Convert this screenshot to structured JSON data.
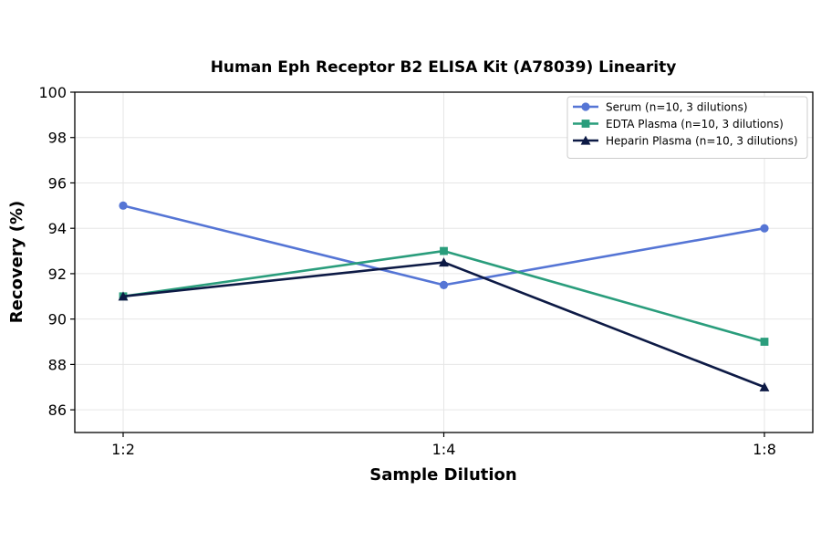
{
  "chart_data": {
    "type": "line",
    "title": "Human Eph Receptor B2 ELISA Kit (A78039) Linearity",
    "xlabel": "Sample Dilution",
    "ylabel": "Recovery (%)",
    "categories": [
      "1:2",
      "1:4",
      "1:8"
    ],
    "ylim": [
      85,
      100
    ],
    "yticks": [
      86,
      88,
      90,
      92,
      94,
      96,
      98,
      100
    ],
    "grid": true,
    "legend_position": "top-right",
    "series": [
      {
        "name": "Serum (n=10, 3 dilutions)",
        "values": [
          95,
          91.5,
          94
        ],
        "color": "#5575d5",
        "marker": "circle"
      },
      {
        "name": "EDTA Plasma (n=10, 3 dilutions)",
        "values": [
          91,
          93,
          89
        ],
        "color": "#2a9d7c",
        "marker": "square"
      },
      {
        "name": "Heparin Plasma (n=10, 3 dilutions)",
        "values": [
          91,
          92.5,
          87
        ],
        "color": "#0d1a45",
        "marker": "triangle"
      }
    ]
  }
}
